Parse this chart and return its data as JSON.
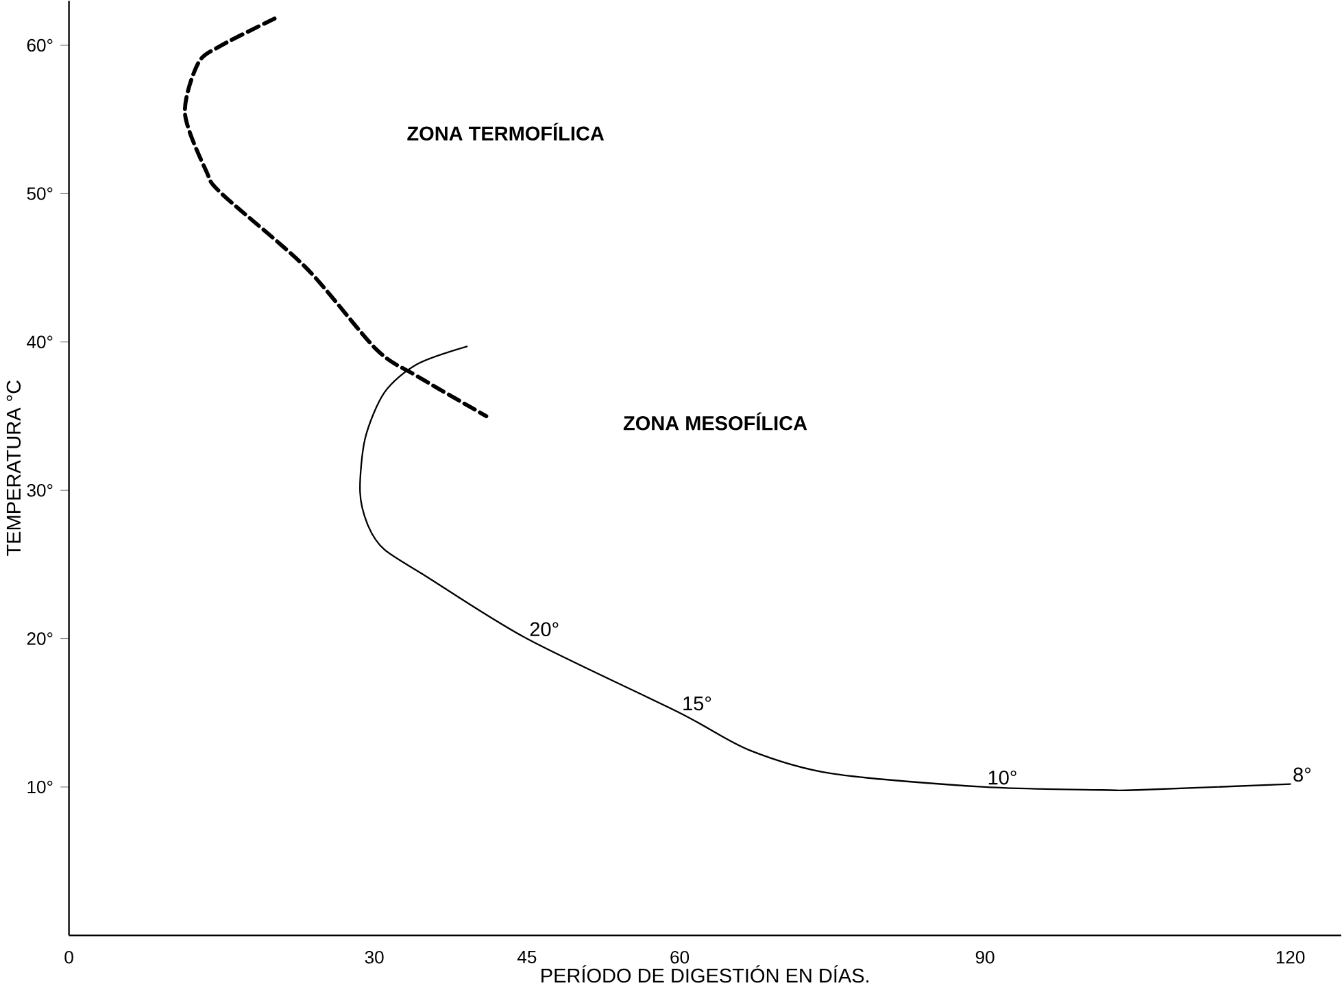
{
  "chart_data": {
    "type": "line",
    "xlabel": "PERÍODO DE DIGESTIÓN EN DÍAS.",
    "ylabel": "TEMPERATURA °C",
    "xlim": [
      0,
      125
    ],
    "ylim": [
      0,
      63
    ],
    "xticks": [
      0,
      30,
      45,
      60,
      90,
      120
    ],
    "yticks": [
      {
        "value": 10,
        "label": "10°"
      },
      {
        "value": 20,
        "label": "20°"
      },
      {
        "value": 30,
        "label": "30°"
      },
      {
        "value": 40,
        "label": "40°"
      },
      {
        "value": 50,
        "label": "50°"
      },
      {
        "value": 60,
        "label": "60°"
      }
    ],
    "grid": false,
    "marker": "none",
    "series": [
      {
        "color": "#000000",
        "line_style": "dashed",
        "x": [
          20.2,
          15,
          12.7,
          11.4,
          13.5,
          15,
          23.3,
          30.2,
          34.2,
          41.0
        ],
        "values": [
          61.8,
          60,
          58.8,
          55.4,
          51.5,
          50,
          45,
          39.5,
          37.7,
          35
        ]
      },
      {
        "color": "#000000",
        "line_style": "solid",
        "x": [
          39.1,
          34.2,
          31.0,
          29.1,
          28.6,
          29.4,
          31.0,
          35.1,
          45,
          60,
          66.8,
          75,
          90,
          101.6,
          105,
          120
        ],
        "values": [
          39.7,
          38.5,
          36.6,
          33.5,
          29.9,
          27.6,
          26.0,
          24.2,
          20,
          15,
          12.5,
          10.9,
          10,
          9.8,
          9.8,
          10.2
        ]
      }
    ],
    "annotations": [
      "ZONA TERMOFÍLICA",
      "ZONA MESOFÍLICA",
      {
        "text": "20°",
        "x": 45,
        "y": 20
      },
      {
        "text": "15°",
        "x": 60,
        "y": 15
      },
      {
        "text": "10°",
        "x": 90,
        "y": 10
      },
      {
        "text": "8°",
        "x": 120,
        "y": 10.2
      }
    ]
  }
}
